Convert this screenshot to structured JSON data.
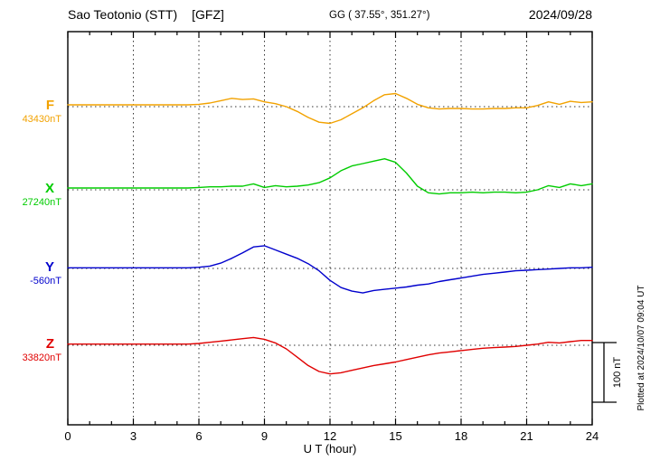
{
  "header": {
    "station": "Sao Teotonio (STT)",
    "institute": "[GFZ]",
    "coords": "GG ( 37.55°, 351.27°)",
    "date": "2024/09/28"
  },
  "axis": {
    "xlabel": "U T (hour)"
  },
  "annotations": {
    "scale_label": "100 nT",
    "plotted_at": "Plotted at 2024/10/07 09:04 UT"
  },
  "chart_data": {
    "type": "line",
    "title": "Magnetogram Sao Teotonio (STT) [GFZ] 2024/09/28",
    "xlabel": "U T (hour)",
    "x_range": [
      0,
      24
    ],
    "x_ticks": [
      0,
      3,
      6,
      9,
      12,
      15,
      18,
      21,
      24
    ],
    "x_step_hours": 0.5,
    "grid": "vertical-dotted-every-3h-and-dotted-baseline-per-series",
    "legend_position": "left-of-each-trace",
    "scale_bar_nT": 100,
    "series": [
      {
        "name": "F",
        "baseline_label": "43430nT",
        "baseline_nT": 43430,
        "color": "#f2a200",
        "delta_nT": [
          3,
          3,
          3,
          3,
          3,
          3,
          3,
          3,
          3,
          3,
          3,
          3,
          4,
          6,
          10,
          14,
          12,
          13,
          8,
          5,
          0,
          -8,
          -18,
          -26,
          -28,
          -22,
          -12,
          -2,
          10,
          20,
          22,
          14,
          4,
          -2,
          -4,
          -3,
          -3,
          -4,
          -4,
          -3,
          -3,
          -2,
          -2,
          2,
          8,
          4,
          9,
          7,
          8
        ]
      },
      {
        "name": "X",
        "baseline_label": "27240nT",
        "baseline_nT": 27240,
        "color": "#00cc00",
        "delta_nT": [
          3,
          3,
          3,
          3,
          3,
          3,
          3,
          3,
          3,
          3,
          3,
          3,
          4,
          5,
          5,
          6,
          6,
          10,
          4,
          7,
          5,
          6,
          8,
          12,
          20,
          32,
          40,
          44,
          48,
          52,
          46,
          28,
          6,
          -5,
          -7,
          -5,
          -5,
          -4,
          -5,
          -4,
          -4,
          -5,
          -4,
          0,
          7,
          4,
          10,
          7,
          10
        ]
      },
      {
        "name": "Y",
        "baseline_label": "-560nT",
        "baseline_nT": -560,
        "color": "#0000cd",
        "delta_nT": [
          1,
          1,
          1,
          1,
          1,
          1,
          1,
          1,
          1,
          1,
          1,
          1,
          2,
          4,
          9,
          17,
          26,
          36,
          38,
          31,
          24,
          17,
          8,
          -4,
          -20,
          -32,
          -38,
          -41,
          -37,
          -35,
          -33,
          -31,
          -28,
          -26,
          -22,
          -19,
          -16,
          -13,
          -10,
          -8,
          -6,
          -4,
          -3,
          -2,
          -1,
          0,
          1,
          1,
          2
        ]
      },
      {
        "name": "Z",
        "baseline_label": "33820nT",
        "baseline_nT": 33820,
        "color": "#e00000",
        "delta_nT": [
          2,
          2,
          2,
          2,
          2,
          2,
          2,
          2,
          2,
          2,
          2,
          2,
          3,
          5,
          7,
          9,
          11,
          13,
          10,
          4,
          -6,
          -20,
          -34,
          -44,
          -48,
          -46,
          -42,
          -38,
          -34,
          -31,
          -28,
          -24,
          -20,
          -16,
          -13,
          -11,
          -9,
          -7,
          -5,
          -4,
          -3,
          -2,
          0,
          2,
          5,
          4,
          6,
          8,
          8
        ]
      }
    ]
  }
}
